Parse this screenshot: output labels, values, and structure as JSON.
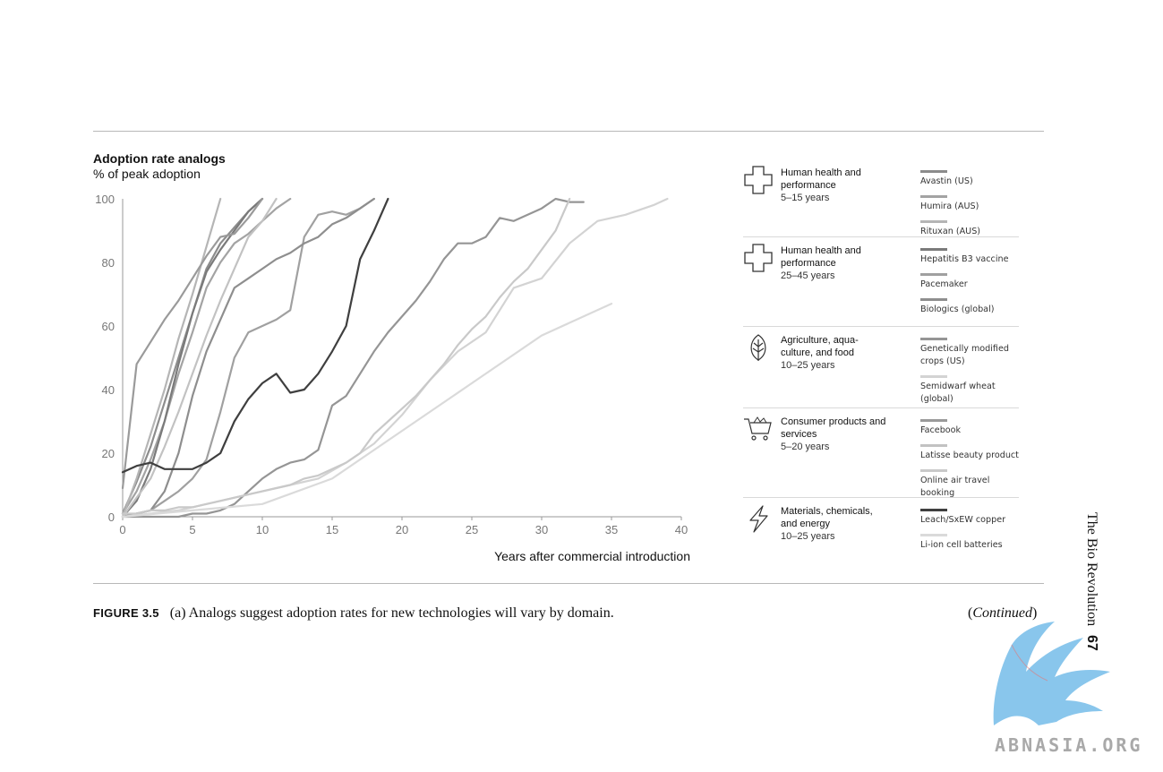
{
  "chart_data": {
    "type": "line",
    "title": "Adoption rate analogs",
    "subtitle": "% of peak adoption",
    "xlabel": "Years after commercial introduction",
    "ylabel": "",
    "xlim": [
      0,
      40
    ],
    "ylim": [
      0,
      100
    ],
    "xticks": [
      "0",
      "5",
      "10",
      "15",
      "20",
      "25",
      "30",
      "35",
      "40"
    ],
    "yticks": [
      "0",
      "20",
      "40",
      "60",
      "80",
      "100"
    ],
    "grid": false,
    "series": [
      {
        "name": "Avastin (US)",
        "color": "#8c8c8c",
        "x": [
          0,
          1,
          2,
          3,
          4,
          5,
          6,
          7,
          8,
          9,
          10
        ],
        "y": [
          1,
          11,
          22,
          36,
          50,
          64,
          78,
          86,
          91,
          96,
          100
        ]
      },
      {
        "name": "Humira (AUS)",
        "color": "#a3a3a3",
        "x": [
          0,
          1,
          2,
          3,
          4,
          5,
          6,
          7,
          8,
          9,
          10,
          11,
          12
        ],
        "y": [
          1,
          8,
          18,
          30,
          45,
          58,
          72,
          80,
          86,
          89,
          93,
          97,
          100
        ]
      },
      {
        "name": "Rituxan (AUS)",
        "color": "#b5b5b5",
        "x": [
          0,
          1,
          2,
          3,
          4,
          5,
          6,
          7
        ],
        "y": [
          0,
          12,
          26,
          40,
          56,
          70,
          85,
          100
        ]
      },
      {
        "name": "Hepatitis B3 vaccine",
        "color": "#7a7a7a",
        "x": [
          0,
          1,
          2,
          3,
          4,
          5,
          6,
          7,
          8,
          9,
          10
        ],
        "y": [
          0,
          5,
          15,
          30,
          48,
          64,
          77,
          84,
          90,
          96,
          100
        ]
      },
      {
        "name": "Pacemaker",
        "color": "#a0a0a0",
        "x": [
          0,
          1,
          2,
          3,
          4,
          5,
          6,
          7,
          8,
          9,
          10,
          11,
          12,
          13,
          14,
          15,
          16,
          17,
          18
        ],
        "y": [
          0,
          1,
          2,
          5,
          8,
          12,
          18,
          33,
          50,
          58,
          60,
          62,
          65,
          88,
          95,
          96,
          95,
          97,
          100
        ]
      },
      {
        "name": "Biologics (global)",
        "color": "#8e8e8e",
        "x": [
          0,
          1,
          2,
          3,
          4,
          5,
          6,
          7,
          8,
          9,
          10,
          11,
          12,
          13,
          14,
          15,
          16,
          17,
          18
        ],
        "y": [
          0,
          1,
          2,
          8,
          20,
          38,
          52,
          62,
          72,
          75,
          78,
          81,
          83,
          86,
          88,
          92,
          94,
          97,
          100
        ]
      },
      {
        "name": "Genetically modified crops (US)",
        "color": "#959595",
        "x": [
          0,
          1,
          2,
          3,
          4,
          5,
          6,
          7,
          8,
          9,
          10,
          11,
          12,
          13,
          14,
          15,
          16,
          17,
          18,
          19,
          20,
          21,
          22,
          23,
          24,
          25,
          26,
          27,
          28,
          29,
          30,
          31,
          32,
          33
        ],
        "y": [
          0,
          0,
          0,
          0,
          0,
          1,
          1,
          2,
          4,
          8,
          12,
          15,
          17,
          18,
          21,
          35,
          38,
          45,
          52,
          58,
          63,
          68,
          74,
          81,
          86,
          86,
          88,
          94,
          93,
          95,
          97,
          100,
          99,
          99
        ]
      },
      {
        "name": "Semidwarf wheat (global)",
        "color": "#d3d3d3",
        "x": [
          0,
          2,
          4,
          6,
          8,
          10,
          12,
          14,
          16,
          18,
          20,
          22,
          24,
          26,
          28,
          30,
          32,
          34,
          36,
          38,
          39
        ],
        "y": [
          0,
          1,
          2,
          4,
          6,
          8,
          10,
          12,
          17,
          23,
          32,
          43,
          52,
          58,
          72,
          75,
          86,
          93,
          95,
          98,
          100
        ]
      },
      {
        "name": "Facebook",
        "color": "#9a9a9a",
        "x": [
          0,
          1,
          2,
          3,
          4,
          5,
          6,
          7,
          8,
          9,
          10
        ],
        "y": [
          9,
          48,
          55,
          62,
          68,
          75,
          82,
          88,
          89,
          94,
          100
        ]
      },
      {
        "name": "Latisse beauty product",
        "color": "#c2c2c2",
        "x": [
          0,
          1,
          2,
          3,
          4,
          5,
          6,
          7,
          8,
          9,
          10,
          11
        ],
        "y": [
          0,
          6,
          12,
          22,
          33,
          45,
          57,
          68,
          78,
          88,
          93,
          100
        ]
      },
      {
        "name": "Online air travel booking",
        "color": "#c9c9c9",
        "x": [
          0,
          1,
          2,
          3,
          4,
          5,
          6,
          7,
          8,
          9,
          10,
          11,
          12,
          13,
          14,
          15,
          16,
          17,
          18,
          19,
          20,
          21,
          22,
          23,
          24,
          25,
          26,
          27,
          28,
          29,
          30,
          31,
          32
        ],
        "y": [
          1,
          1,
          2,
          2,
          3,
          3,
          4,
          5,
          6,
          7,
          8,
          9,
          10,
          12,
          13,
          15,
          17,
          20,
          26,
          30,
          34,
          38,
          43,
          48,
          54,
          59,
          63,
          69,
          74,
          78,
          84,
          90,
          100
        ]
      },
      {
        "name": "Leach/SxEW copper",
        "color": "#3f3f3f",
        "x": [
          0,
          1,
          2,
          3,
          4,
          5,
          6,
          7,
          8,
          9,
          10,
          11,
          12,
          13,
          14,
          15,
          16,
          17,
          18,
          19
        ],
        "y": [
          14,
          16,
          17,
          15,
          15,
          15,
          17,
          20,
          30,
          37,
          42,
          45,
          39,
          40,
          45,
          52,
          60,
          81,
          90,
          100
        ]
      },
      {
        "name": "Li-ion cell batteries",
        "color": "#dadada",
        "x": [
          0,
          5,
          10,
          15,
          20,
          25,
          30,
          35
        ],
        "y": [
          0,
          2,
          4,
          12,
          27,
          42,
          57,
          67
        ]
      }
    ]
  },
  "legend_groups": [
    {
      "domain": "Human health and performance",
      "years": "5–15 years",
      "icon": "plus-cross-icon",
      "items": [
        {
          "label": "Avastin (US)",
          "color": "#8c8c8c"
        },
        {
          "label": "Humira (AUS)",
          "color": "#a3a3a3"
        },
        {
          "label": "Rituxan (AUS)",
          "color": "#b5b5b5"
        }
      ]
    },
    {
      "domain": "Human health and performance",
      "years": "25–45 years",
      "icon": "plus-cross-icon",
      "items": [
        {
          "label": "Hepatitis B3 vaccine",
          "color": "#7a7a7a"
        },
        {
          "label": "Pacemaker",
          "color": "#a0a0a0"
        },
        {
          "label": "Biologics (global)",
          "color": "#8e8e8e"
        }
      ]
    },
    {
      "domain": "Agriculture, aqua-culture, and food",
      "years": "10–25 years",
      "icon": "leaf-icon",
      "items": [
        {
          "label": "Genetically modified crops (US)",
          "color": "#959595"
        },
        {
          "label": "Semidwarf wheat (global)",
          "color": "#d3d3d3"
        }
      ]
    },
    {
      "domain": "Consumer products and services",
      "years": "5–20 years",
      "icon": "shopping-cart-icon",
      "items": [
        {
          "label": "Facebook",
          "color": "#9a9a9a"
        },
        {
          "label": "Latisse beauty product",
          "color": "#c2c2c2"
        },
        {
          "label": "Online air travel booking",
          "color": "#c9c9c9"
        }
      ]
    },
    {
      "domain": "Materials, chemicals, and energy",
      "years": "10–25 years",
      "icon": "lightning-icon",
      "items": [
        {
          "label": "Leach/SxEW copper",
          "color": "#3f3f3f"
        },
        {
          "label": "Li-ion cell batteries",
          "color": "#dadada"
        }
      ]
    }
  ],
  "caption": {
    "label": "FIGURE 3.5",
    "text": "(a) Analogs suggest adoption rates for new technologies will vary by domain.",
    "continued_open": "(",
    "continued_word": "Continued",
    "continued_close": ")"
  },
  "running_head": {
    "title": "The Bio Revolution",
    "page": "67"
  },
  "watermark": {
    "text": "ABNASIA.ORG",
    "color": "#7cc0ea"
  }
}
